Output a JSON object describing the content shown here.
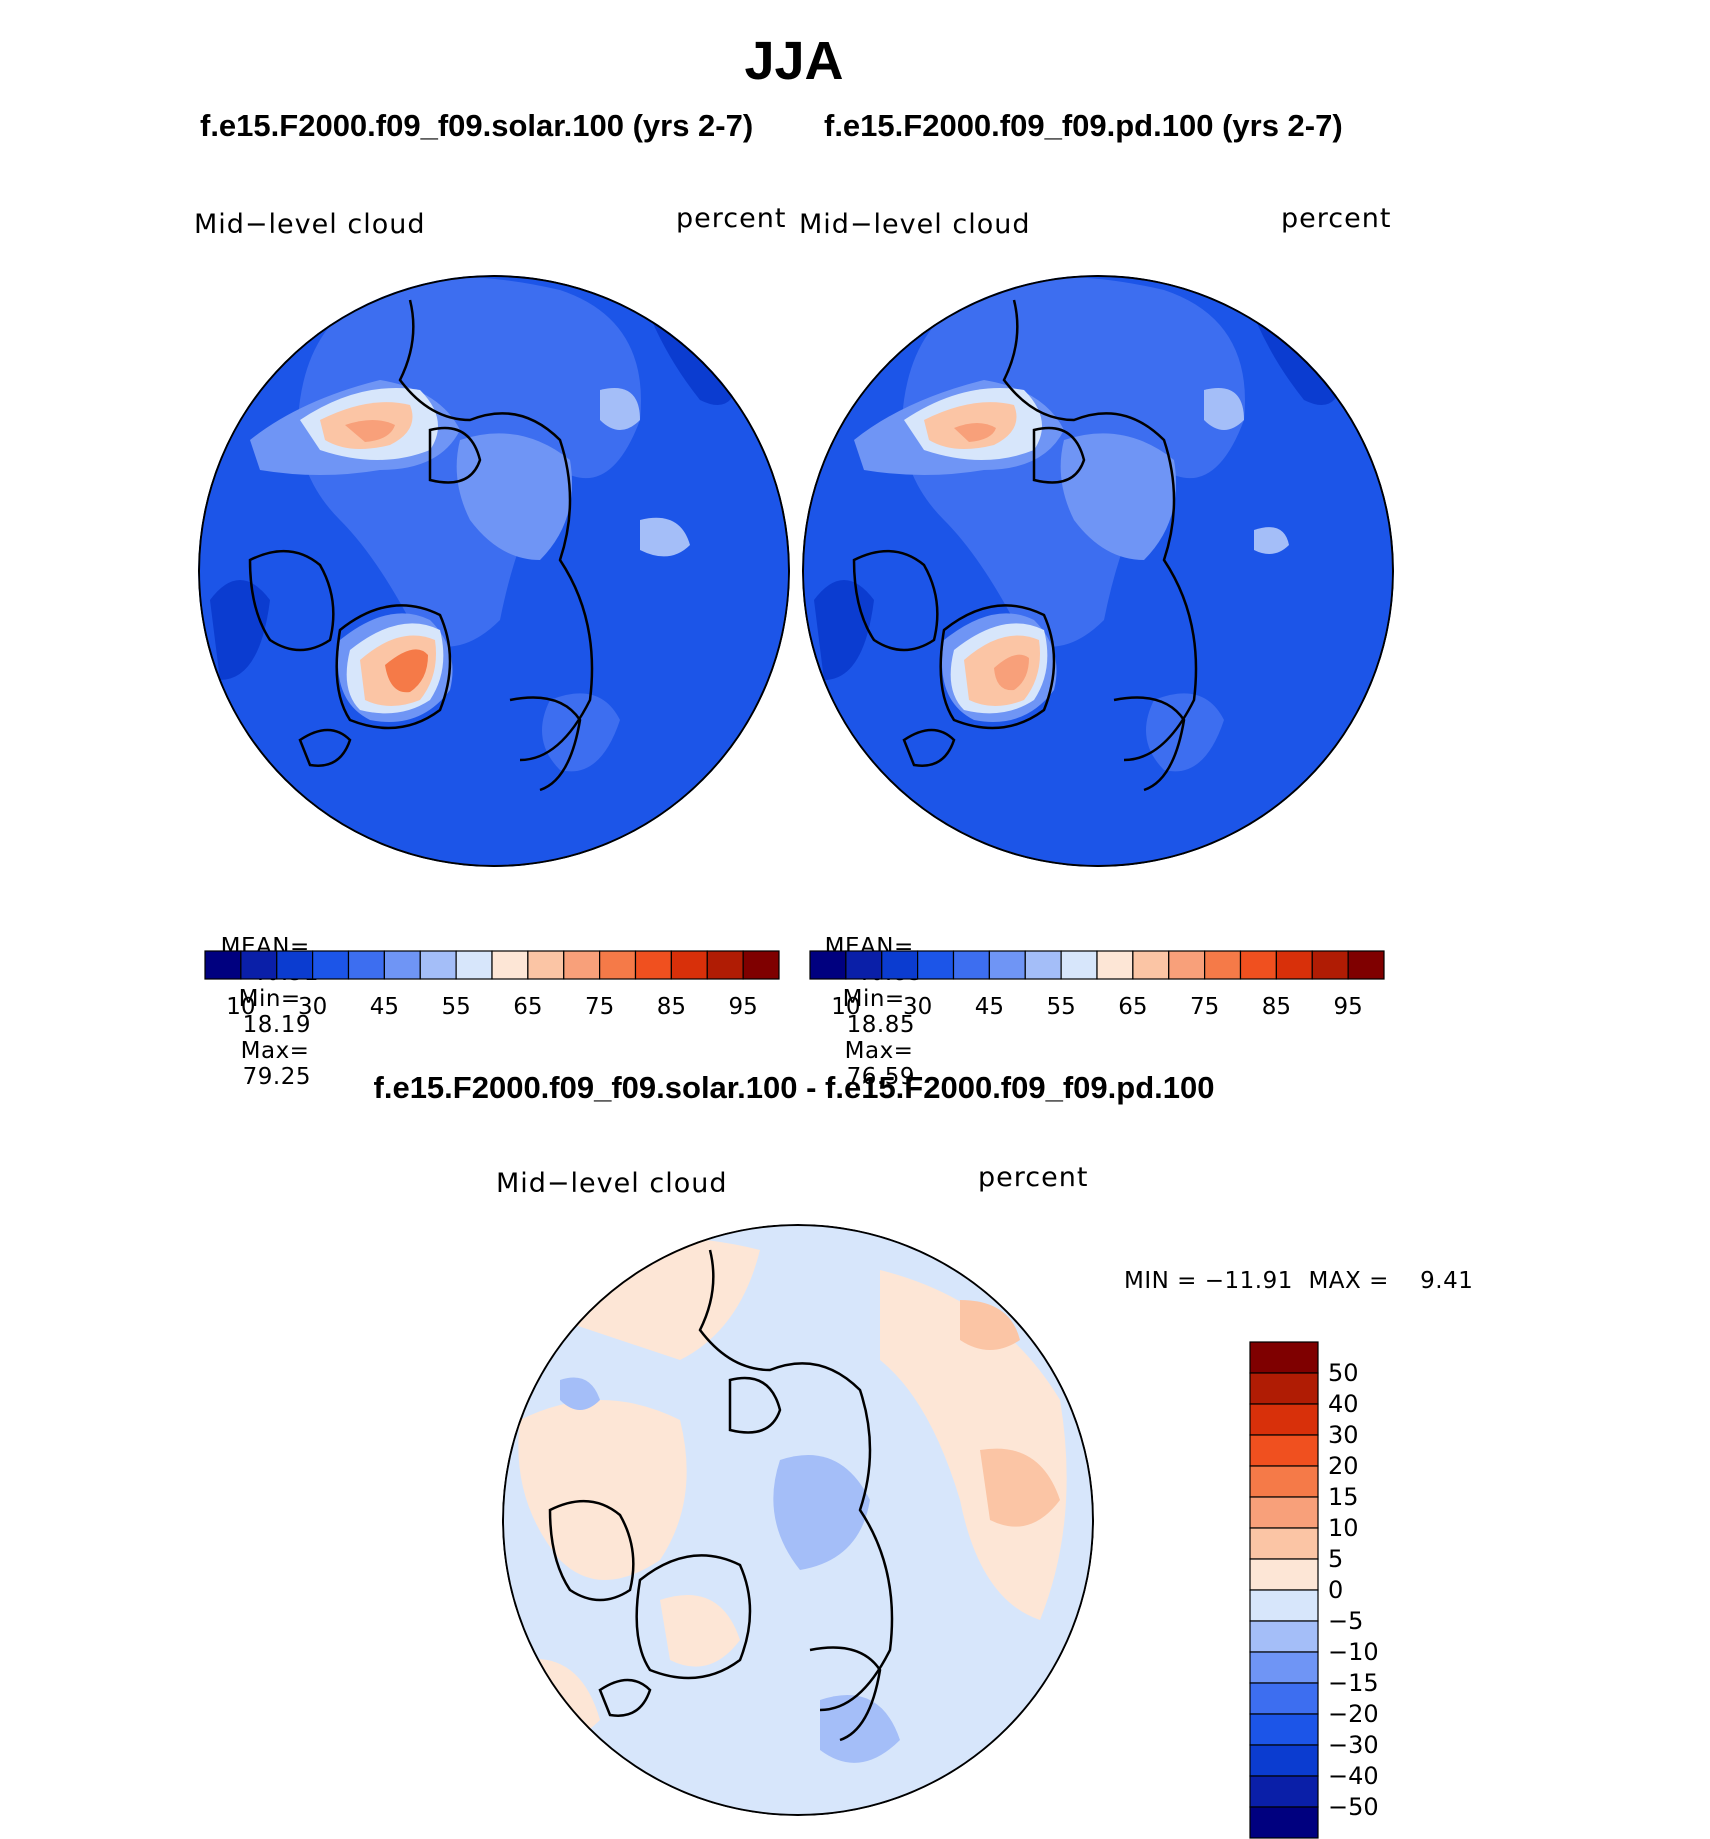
{
  "title": "JJA",
  "panels": [
    {
      "case_title": "f.e15.F2000.f09_f09.solar.100 (yrs 2-7)",
      "variable": "Mid−level cloud",
      "units": "percent",
      "stats": {
        "mean_label": "MEAN=",
        "mean": "40.51",
        "min_label": "Min=",
        "min": "18.19",
        "max_label": "Max=",
        "max": "79.25"
      }
    },
    {
      "case_title": "f.e15.F2000.f09_f09.pd.100 (yrs 2-7)",
      "variable": "Mid−level cloud",
      "units": "percent",
      "stats": {
        "mean_label": "MEAN=",
        "mean": "40.83",
        "min_label": "Min=",
        "min": "18.85",
        "max_label": "Max=",
        "max": "76.59"
      }
    }
  ],
  "difference": {
    "title": "f.e15.F2000.f09_f09.solar.100 - f.e15.F2000.f09_f09.pd.100",
    "variable": "Mid−level cloud",
    "units": "percent",
    "min_max_text": "MIN = −11.91  MAX =    9.41"
  },
  "chart_data": [
    {
      "type": "heatmap",
      "projection": "north-polar-stereographic",
      "variable": "Mid−level cloud",
      "units": "percent",
      "stats": {
        "mean": 40.51,
        "min": 18.19,
        "max": 79.25
      },
      "colorbar": {
        "orientation": "horizontal",
        "colors": [
          "#00007f",
          "#0a1fa8",
          "#0b3cd0",
          "#1c55e8",
          "#3d6ef0",
          "#6f95f5",
          "#a4bef8",
          "#d7e6fb",
          "#fde6d6",
          "#fbc5a5",
          "#f8a07a",
          "#f57a48",
          "#f0501f",
          "#d8300a",
          "#b01c04",
          "#7f0000"
        ],
        "tick_labels": [
          "10",
          "30",
          "45",
          "55",
          "65",
          "75",
          "85",
          "95"
        ]
      }
    },
    {
      "type": "heatmap",
      "projection": "north-polar-stereographic",
      "variable": "Mid−level cloud",
      "units": "percent",
      "stats": {
        "mean": 40.83,
        "min": 18.85,
        "max": 76.59
      },
      "colorbar": {
        "orientation": "horizontal",
        "colors": [
          "#00007f",
          "#0a1fa8",
          "#0b3cd0",
          "#1c55e8",
          "#3d6ef0",
          "#6f95f5",
          "#a4bef8",
          "#d7e6fb",
          "#fde6d6",
          "#fbc5a5",
          "#f8a07a",
          "#f57a48",
          "#f0501f",
          "#d8300a",
          "#b01c04",
          "#7f0000"
        ],
        "tick_labels": [
          "10",
          "30",
          "45",
          "55",
          "65",
          "75",
          "85",
          "95"
        ]
      }
    },
    {
      "type": "heatmap",
      "projection": "north-polar-stereographic",
      "variable": "Mid−level cloud",
      "units": "percent",
      "stats": {
        "min": -11.91,
        "max": 9.41
      },
      "colorbar": {
        "orientation": "vertical",
        "colors_top_to_bottom": [
          "#7f0000",
          "#b01c04",
          "#d8300a",
          "#f0501f",
          "#f57a48",
          "#f8a07a",
          "#fbc5a5",
          "#fde6d6",
          "#d7e6fb",
          "#a4bef8",
          "#6f95f5",
          "#3d6ef0",
          "#1c55e8",
          "#0b3cd0",
          "#0a1fa8",
          "#00007f"
        ],
        "tick_labels_top_to_bottom": [
          "50",
          "40",
          "30",
          "20",
          "15",
          "10",
          "5",
          "0",
          "−5",
          "−10",
          "−15",
          "−20",
          "−30",
          "−40",
          "−50"
        ]
      }
    }
  ]
}
